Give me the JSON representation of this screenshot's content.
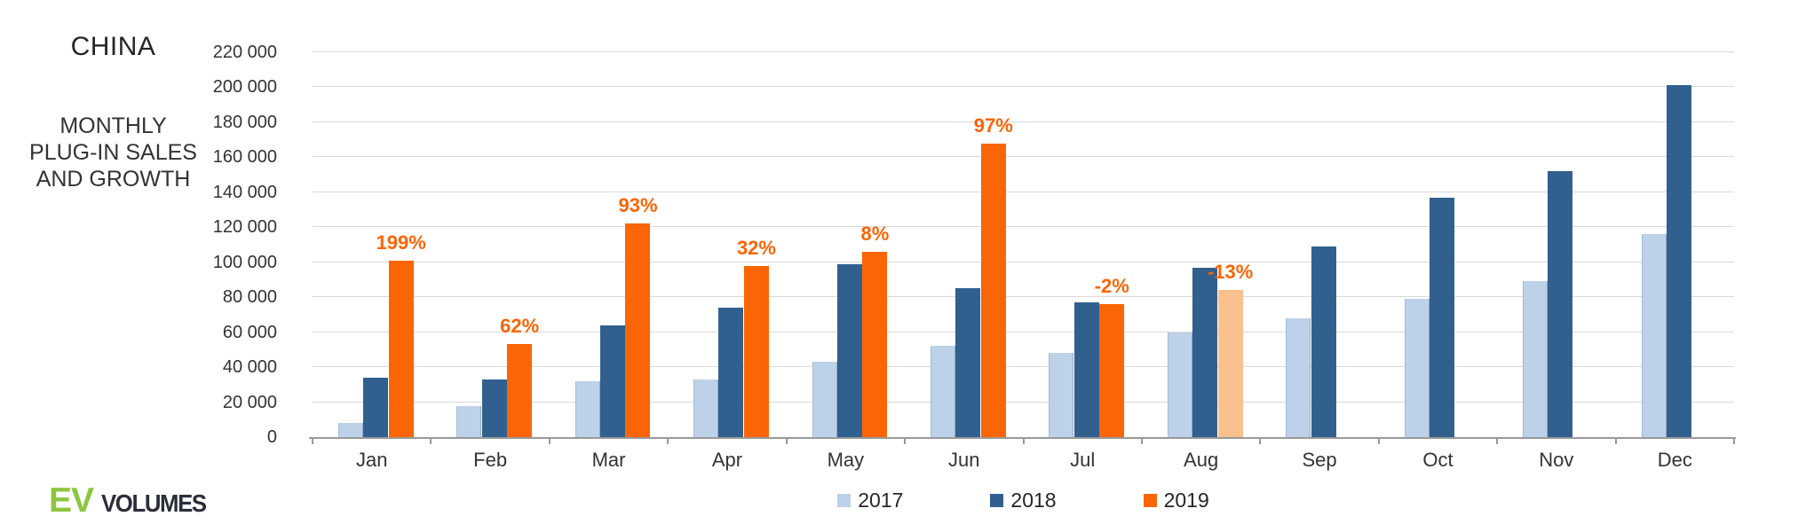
{
  "header": {
    "title": "CHINA",
    "subtitle_lines": [
      "MONTHLY",
      "PLUG-IN SALES",
      "AND GROWTH"
    ]
  },
  "logo": {
    "ev": "EV",
    "volumes": "VOLUMES",
    "ev_color": "#8dc63f",
    "volumes_color": "#2b2e3a"
  },
  "chart_data": {
    "type": "bar",
    "title": "CHINA",
    "subtitle": "MONTHLY PLUG-IN SALES AND GROWTH",
    "categories": [
      "Jan",
      "Feb",
      "Mar",
      "Apr",
      "May",
      "Jun",
      "Jul",
      "Aug",
      "Sep",
      "Oct",
      "Nov",
      "Dec"
    ],
    "series": [
      {
        "name": "2017",
        "color": "#bdd1e8",
        "values": [
          8000,
          18000,
          32000,
          33000,
          43000,
          52000,
          48000,
          60000,
          68000,
          79000,
          89000,
          116000
        ]
      },
      {
        "name": "2018",
        "color": "#31608f",
        "values": [
          34000,
          33000,
          64000,
          74000,
          99000,
          85000,
          77000,
          97000,
          109000,
          137000,
          152000,
          201000
        ]
      },
      {
        "name": "2019",
        "color": "#fa6505",
        "values": [
          101000,
          53000,
          122000,
          98000,
          106000,
          168000,
          76000,
          84000,
          null,
          null,
          null,
          null
        ]
      }
    ],
    "growth_labels": [
      "199%",
      "62%",
      "93%",
      "32%",
      "8%",
      "97%",
      "-2%",
      "-13%",
      null,
      null,
      null,
      null
    ],
    "growth_label_color": "#f96505",
    "highlight": {
      "series": "2019",
      "category": "Aug",
      "color": "#fac090"
    },
    "ylim": [
      0,
      220000
    ],
    "ytick_step": 20000,
    "ytick_labels": [
      "0",
      "20 000",
      "40 000",
      "60 000",
      "80 000",
      "100 000",
      "120 000",
      "140 000",
      "160 000",
      "180 000",
      "200 000",
      "220 000"
    ],
    "grid": true,
    "gridline_color": "#d9d9d9",
    "axis_color": "#9a9a9a",
    "legend_position": "bottom",
    "legend": [
      "2017",
      "2018",
      "2019"
    ]
  }
}
